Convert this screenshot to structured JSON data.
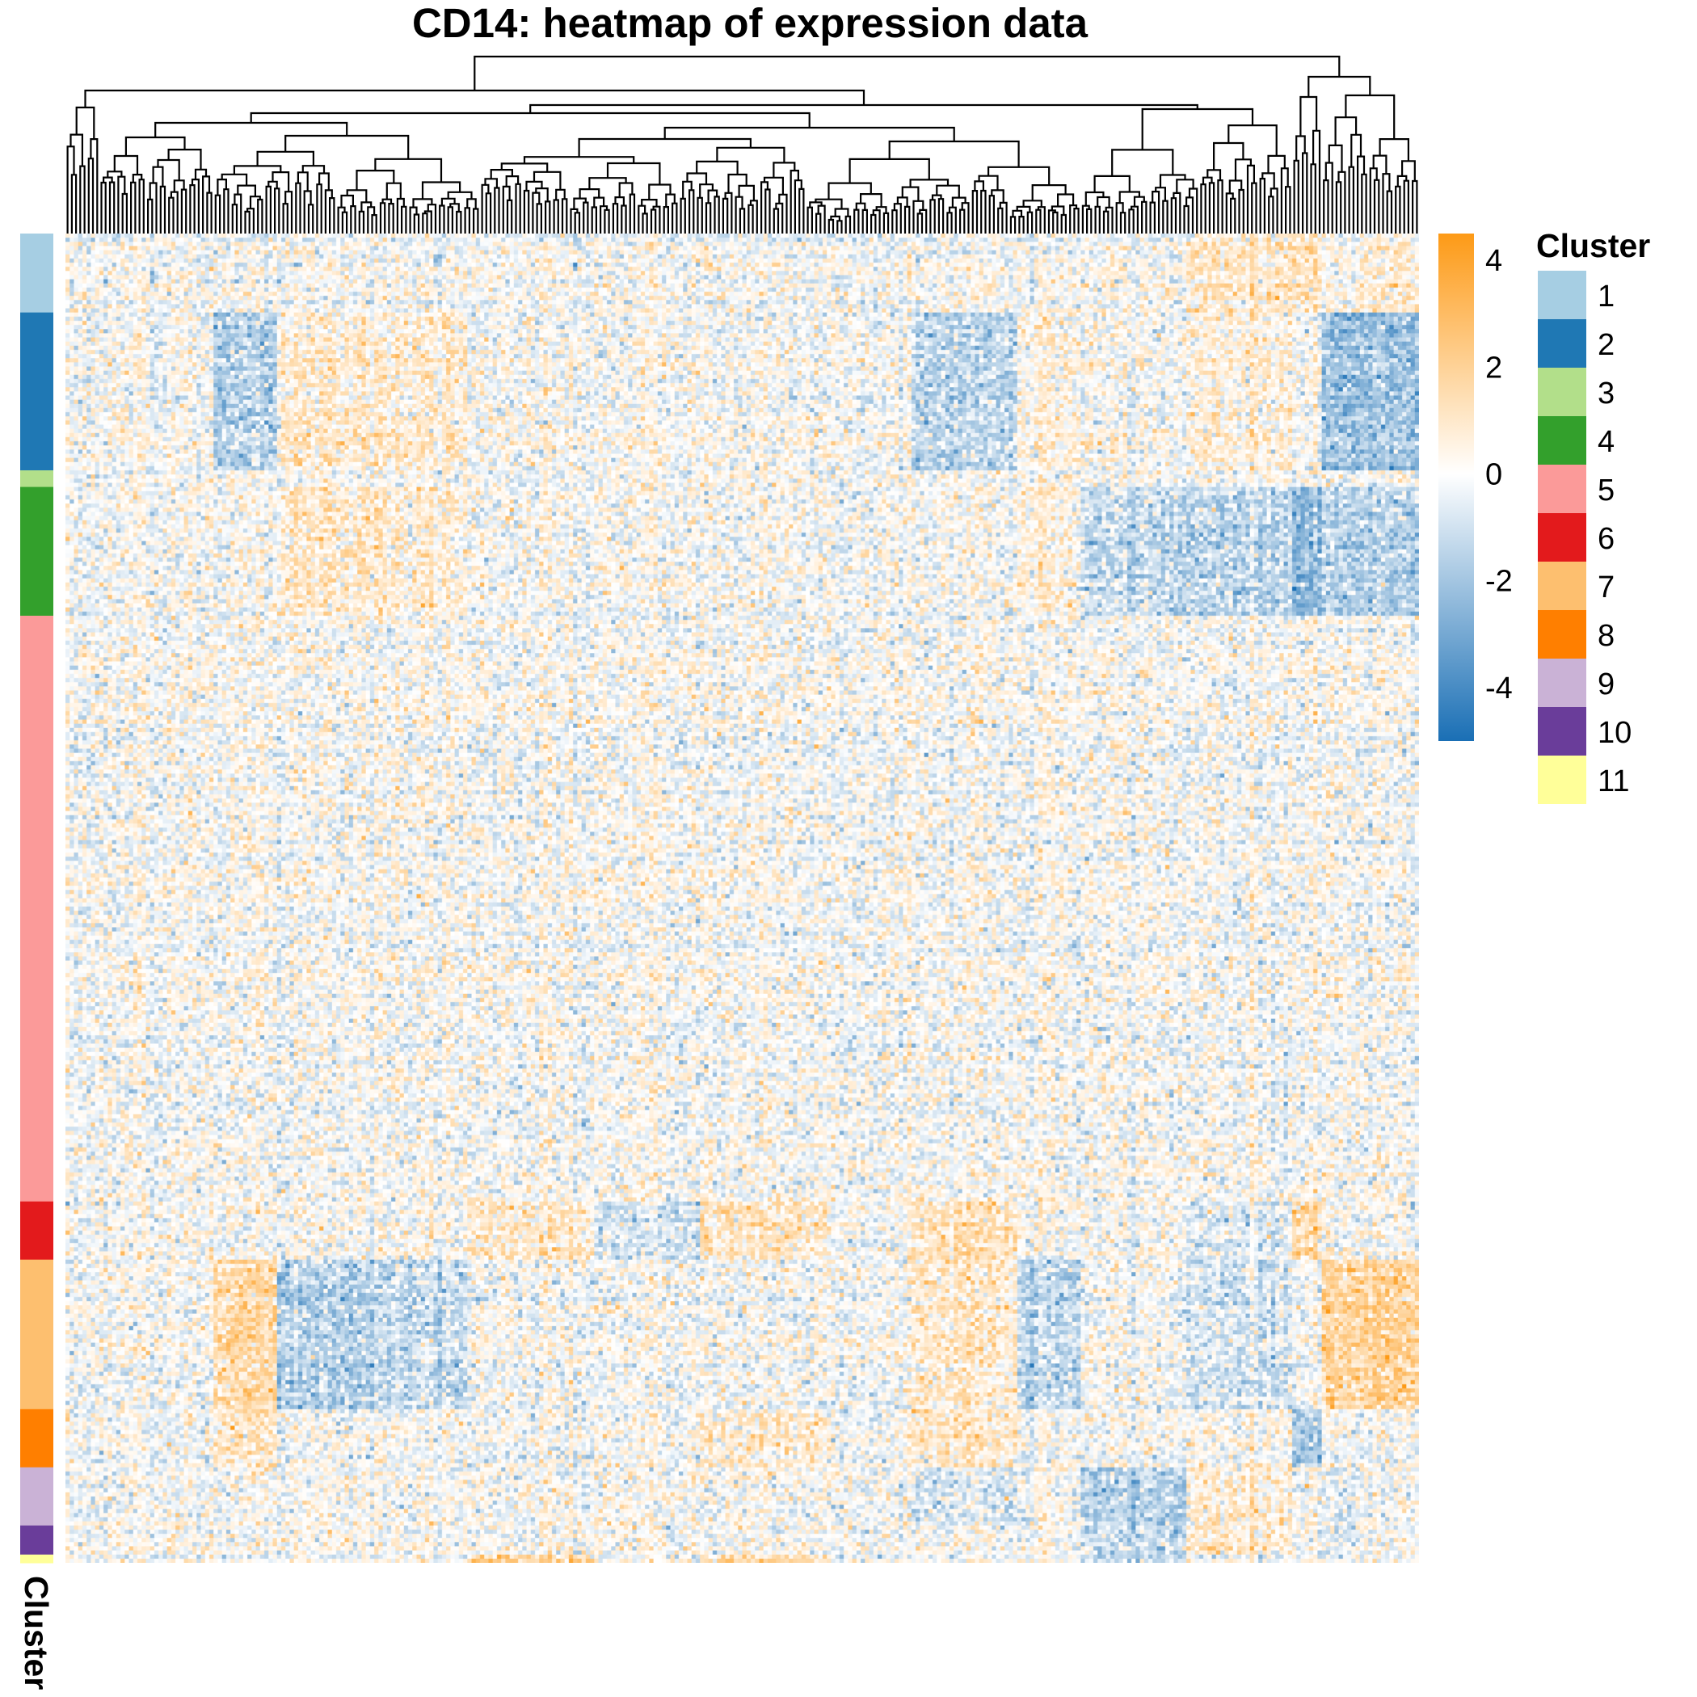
{
  "chart_data": {
    "type": "heatmap",
    "title": "CD14: heatmap of expression data",
    "n_columns": 320,
    "n_rows": 320,
    "color_scale": {
      "min": -5,
      "max": 4.5,
      "ticks": [
        4,
        2,
        0,
        -2,
        -4
      ],
      "tick_labels": [
        "4",
        "2",
        "0",
        "-2",
        "-4"
      ],
      "low_color": "#1a6fb5",
      "mid_color": "#ffffff",
      "high_color": "#fd9a16"
    },
    "row_annotation": {
      "name": "Cluster",
      "legend_title": "Cluster",
      "clusters": [
        {
          "label": "1",
          "color": "#a6cee3",
          "rows": 19
        },
        {
          "label": "2",
          "color": "#1f78b4",
          "rows": 38
        },
        {
          "label": "3",
          "color": "#b2df8a",
          "rows": 4
        },
        {
          "label": "4",
          "color": "#33a02c",
          "rows": 31
        },
        {
          "label": "5",
          "color": "#fb9a99",
          "rows": 141
        },
        {
          "label": "6",
          "color": "#e31a1c",
          "rows": 14
        },
        {
          "label": "7",
          "color": "#fdbf6f",
          "rows": 36
        },
        {
          "label": "8",
          "color": "#ff7f00",
          "rows": 14
        },
        {
          "label": "9",
          "color": "#cab2d6",
          "rows": 14
        },
        {
          "label": "10",
          "color": "#6a3d9a",
          "rows": 7
        },
        {
          "label": "11",
          "color": "#ffff99",
          "rows": 2
        }
      ]
    },
    "column_dendrogram": true,
    "legend_placement": "right",
    "grid": false
  }
}
